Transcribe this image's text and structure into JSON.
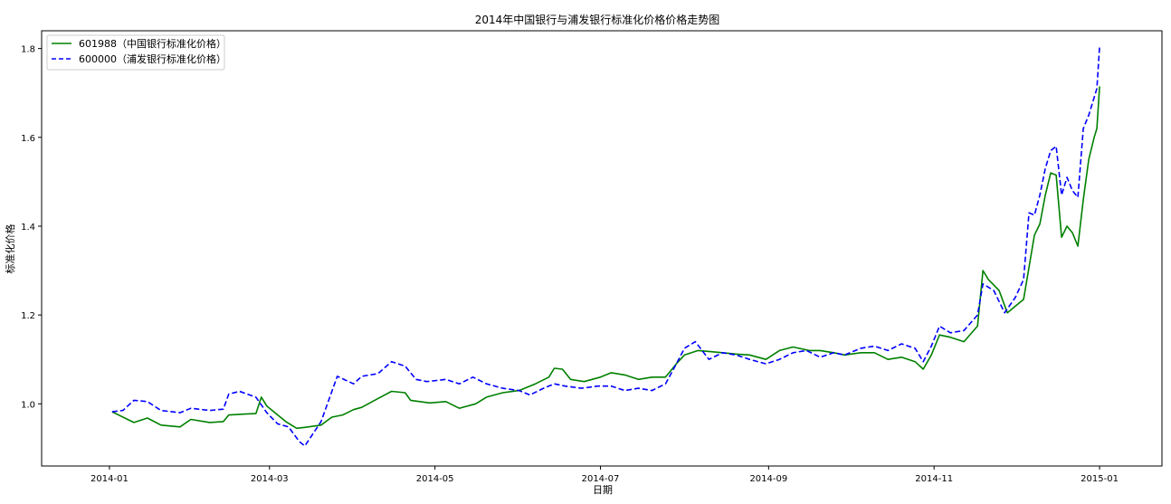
{
  "chart_data": {
    "type": "line",
    "title": "2014年中国银行与浦发银行标准化价格价格走势图",
    "xlabel": "日期",
    "ylabel": "标准化价格",
    "xlim": [
      "2013-12-07",
      "2015-01-24"
    ],
    "ylim": [
      0.86,
      1.84
    ],
    "grid": false,
    "legend_position": "top-left",
    "x_ticks": [
      "2014-01",
      "2014-03",
      "2014-05",
      "2014-07",
      "2014-09",
      "2014-11",
      "2015-01"
    ],
    "y_ticks": [
      "1.0",
      "1.2",
      "1.4",
      "1.6",
      "1.8"
    ],
    "series": [
      {
        "name": "601988（中国银行标准化价格）",
        "color": "#008000",
        "style": "solid",
        "points": [
          [
            "2014-01-02",
            0.982
          ],
          [
            "2014-01-10",
            0.958
          ],
          [
            "2014-01-15",
            0.968
          ],
          [
            "2014-01-20",
            0.952
          ],
          [
            "2014-01-27",
            0.948
          ],
          [
            "2014-01-31",
            0.965
          ],
          [
            "2014-02-07",
            0.958
          ],
          [
            "2014-02-12",
            0.96
          ],
          [
            "2014-02-14",
            0.975
          ],
          [
            "2014-02-20",
            0.977
          ],
          [
            "2014-02-24",
            0.978
          ],
          [
            "2014-02-26",
            1.015
          ],
          [
            "2014-02-28",
            0.995
          ],
          [
            "2014-03-07",
            0.96
          ],
          [
            "2014-03-11",
            0.945
          ],
          [
            "2014-03-14",
            0.947
          ],
          [
            "2014-03-20",
            0.952
          ],
          [
            "2014-03-24",
            0.97
          ],
          [
            "2014-03-28",
            0.975
          ],
          [
            "2014-04-01",
            0.987
          ],
          [
            "2014-04-04",
            0.992
          ],
          [
            "2014-04-10",
            1.012
          ],
          [
            "2014-04-15",
            1.028
          ],
          [
            "2014-04-20",
            1.025
          ],
          [
            "2014-04-22",
            1.008
          ],
          [
            "2014-04-29",
            1.002
          ],
          [
            "2014-05-05",
            1.005
          ],
          [
            "2014-05-10",
            0.99
          ],
          [
            "2014-05-16",
            1.0
          ],
          [
            "2014-05-20",
            1.015
          ],
          [
            "2014-05-26",
            1.025
          ],
          [
            "2014-06-01",
            1.03
          ],
          [
            "2014-06-07",
            1.045
          ],
          [
            "2014-06-12",
            1.06
          ],
          [
            "2014-06-14",
            1.08
          ],
          [
            "2014-06-17",
            1.078
          ],
          [
            "2014-06-20",
            1.055
          ],
          [
            "2014-06-25",
            1.05
          ],
          [
            "2014-07-01",
            1.06
          ],
          [
            "2014-07-05",
            1.07
          ],
          [
            "2014-07-10",
            1.065
          ],
          [
            "2014-07-15",
            1.055
          ],
          [
            "2014-07-20",
            1.06
          ],
          [
            "2014-07-25",
            1.06
          ],
          [
            "2014-07-29",
            1.09
          ],
          [
            "2014-08-01",
            1.11
          ],
          [
            "2014-08-06",
            1.12
          ],
          [
            "2014-08-10",
            1.118
          ],
          [
            "2014-08-15",
            1.115
          ],
          [
            "2014-08-20",
            1.112
          ],
          [
            "2014-08-25",
            1.11
          ],
          [
            "2014-08-31",
            1.1
          ],
          [
            "2014-09-05",
            1.12
          ],
          [
            "2014-09-10",
            1.128
          ],
          [
            "2014-09-16",
            1.12
          ],
          [
            "2014-09-20",
            1.12
          ],
          [
            "2014-09-25",
            1.115
          ],
          [
            "2014-09-29",
            1.11
          ],
          [
            "2014-10-05",
            1.115
          ],
          [
            "2014-10-10",
            1.115
          ],
          [
            "2014-10-15",
            1.1
          ],
          [
            "2014-10-20",
            1.105
          ],
          [
            "2014-10-25",
            1.095
          ],
          [
            "2014-10-28",
            1.078
          ],
          [
            "2014-10-31",
            1.11
          ],
          [
            "2014-11-03",
            1.155
          ],
          [
            "2014-11-07",
            1.15
          ],
          [
            "2014-11-12",
            1.14
          ],
          [
            "2014-11-17",
            1.175
          ],
          [
            "2014-11-19",
            1.3
          ],
          [
            "2014-11-21",
            1.28
          ],
          [
            "2014-11-25",
            1.255
          ],
          [
            "2014-11-28",
            1.205
          ],
          [
            "2014-12-01",
            1.22
          ],
          [
            "2014-12-04",
            1.235
          ],
          [
            "2014-12-08",
            1.38
          ],
          [
            "2014-12-10",
            1.405
          ],
          [
            "2014-12-12",
            1.47
          ],
          [
            "2014-12-14",
            1.52
          ],
          [
            "2014-12-16",
            1.515
          ],
          [
            "2014-12-18",
            1.375
          ],
          [
            "2014-12-20",
            1.4
          ],
          [
            "2014-12-22",
            1.385
          ],
          [
            "2014-12-24",
            1.355
          ],
          [
            "2014-12-26",
            1.46
          ],
          [
            "2014-12-28",
            1.55
          ],
          [
            "2014-12-30",
            1.6
          ],
          [
            "2014-12-31",
            1.62
          ],
          [
            "2015-01-01",
            1.715
          ]
        ]
      },
      {
        "name": "600000（浦发银行标准化价格）",
        "color": "#0000ff",
        "style": "dashed",
        "points": [
          [
            "2014-01-02",
            0.982
          ],
          [
            "2014-01-06",
            0.985
          ],
          [
            "2014-01-10",
            1.008
          ],
          [
            "2014-01-15",
            1.005
          ],
          [
            "2014-01-20",
            0.985
          ],
          [
            "2014-01-27",
            0.98
          ],
          [
            "2014-01-31",
            0.99
          ],
          [
            "2014-02-07",
            0.985
          ],
          [
            "2014-02-12",
            0.988
          ],
          [
            "2014-02-14",
            1.022
          ],
          [
            "2014-02-18",
            1.028
          ],
          [
            "2014-02-24",
            1.015
          ],
          [
            "2014-02-28",
            0.98
          ],
          [
            "2014-03-04",
            0.955
          ],
          [
            "2014-03-08",
            0.948
          ],
          [
            "2014-03-12",
            0.915
          ],
          [
            "2014-03-14",
            0.905
          ],
          [
            "2014-03-20",
            0.96
          ],
          [
            "2014-03-26",
            1.062
          ],
          [
            "2014-04-01",
            1.045
          ],
          [
            "2014-04-04",
            1.062
          ],
          [
            "2014-04-10",
            1.068
          ],
          [
            "2014-04-15",
            1.095
          ],
          [
            "2014-04-20",
            1.085
          ],
          [
            "2014-04-24",
            1.055
          ],
          [
            "2014-04-28",
            1.05
          ],
          [
            "2014-05-05",
            1.055
          ],
          [
            "2014-05-10",
            1.045
          ],
          [
            "2014-05-15",
            1.06
          ],
          [
            "2014-05-20",
            1.045
          ],
          [
            "2014-05-26",
            1.035
          ],
          [
            "2014-06-01",
            1.03
          ],
          [
            "2014-06-05",
            1.02
          ],
          [
            "2014-06-10",
            1.035
          ],
          [
            "2014-06-14",
            1.045
          ],
          [
            "2014-06-18",
            1.04
          ],
          [
            "2014-06-24",
            1.035
          ],
          [
            "2014-06-30",
            1.04
          ],
          [
            "2014-07-05",
            1.04
          ],
          [
            "2014-07-10",
            1.03
          ],
          [
            "2014-07-15",
            1.035
          ],
          [
            "2014-07-20",
            1.03
          ],
          [
            "2014-07-25",
            1.045
          ],
          [
            "2014-07-29",
            1.09
          ],
          [
            "2014-08-01",
            1.125
          ],
          [
            "2014-08-05",
            1.14
          ],
          [
            "2014-08-10",
            1.1
          ],
          [
            "2014-08-15",
            1.115
          ],
          [
            "2014-08-20",
            1.11
          ],
          [
            "2014-08-25",
            1.1
          ],
          [
            "2014-08-31",
            1.09
          ],
          [
            "2014-09-05",
            1.1
          ],
          [
            "2014-09-10",
            1.115
          ],
          [
            "2014-09-15",
            1.12
          ],
          [
            "2014-09-20",
            1.105
          ],
          [
            "2014-09-25",
            1.115
          ],
          [
            "2014-09-29",
            1.11
          ],
          [
            "2014-10-05",
            1.125
          ],
          [
            "2014-10-10",
            1.13
          ],
          [
            "2014-10-15",
            1.12
          ],
          [
            "2014-10-20",
            1.135
          ],
          [
            "2014-10-25",
            1.125
          ],
          [
            "2014-10-28",
            1.095
          ],
          [
            "2014-10-31",
            1.13
          ],
          [
            "2014-11-03",
            1.175
          ],
          [
            "2014-11-07",
            1.16
          ],
          [
            "2014-11-12",
            1.165
          ],
          [
            "2014-11-17",
            1.2
          ],
          [
            "2014-11-19",
            1.27
          ],
          [
            "2014-11-23",
            1.255
          ],
          [
            "2014-11-27",
            1.205
          ],
          [
            "2014-12-01",
            1.24
          ],
          [
            "2014-12-04",
            1.28
          ],
          [
            "2014-12-06",
            1.43
          ],
          [
            "2014-12-08",
            1.425
          ],
          [
            "2014-12-10",
            1.47
          ],
          [
            "2014-12-12",
            1.53
          ],
          [
            "2014-12-14",
            1.57
          ],
          [
            "2014-12-16",
            1.58
          ],
          [
            "2014-12-18",
            1.47
          ],
          [
            "2014-12-20",
            1.51
          ],
          [
            "2014-12-22",
            1.48
          ],
          [
            "2014-12-24",
            1.465
          ],
          [
            "2014-12-26",
            1.62
          ],
          [
            "2014-12-28",
            1.65
          ],
          [
            "2014-12-30",
            1.69
          ],
          [
            "2014-12-31",
            1.71
          ],
          [
            "2015-01-01",
            1.805
          ]
        ]
      }
    ]
  }
}
